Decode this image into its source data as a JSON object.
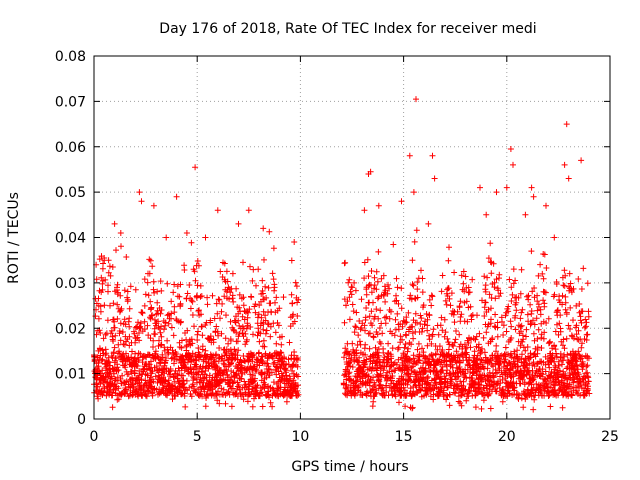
{
  "chart_data": {
    "type": "scatter",
    "title": "Day 176 of 2018, Rate Of TEC Index for receiver medi",
    "xlabel": "GPS time / hours",
    "ylabel": "ROTI / TECUs",
    "xlim": [
      0,
      25
    ],
    "ylim": [
      0,
      0.08
    ],
    "xticks": [
      0,
      5,
      10,
      15,
      20,
      25
    ],
    "xtick_labels": [
      "0",
      "5",
      "10",
      "15",
      "20",
      "25"
    ],
    "yticks": [
      0,
      0.01,
      0.02,
      0.03,
      0.04,
      0.05,
      0.06,
      0.07,
      0.08
    ],
    "ytick_labels": [
      "0",
      "0.01",
      "0.02",
      "0.03",
      "0.04",
      "0.05",
      "0.06",
      "0.07",
      "0.08"
    ],
    "grid": true,
    "marker": "+",
    "series": [
      {
        "name": "ROTI",
        "color": "#ff0000",
        "segments": [
          {
            "x_start": 0.0,
            "x_end": 9.9
          },
          {
            "x_start": 12.1,
            "x_end": 24.0
          }
        ],
        "highlights": [
          {
            "x": 0.1,
            "y": 0.034
          },
          {
            "x": 0.5,
            "y": 0.035
          },
          {
            "x": 1.0,
            "y": 0.043
          },
          {
            "x": 1.3,
            "y": 0.041
          },
          {
            "x": 2.2,
            "y": 0.05
          },
          {
            "x": 2.3,
            "y": 0.048
          },
          {
            "x": 2.9,
            "y": 0.047
          },
          {
            "x": 3.5,
            "y": 0.04
          },
          {
            "x": 4.0,
            "y": 0.049
          },
          {
            "x": 4.5,
            "y": 0.041
          },
          {
            "x": 4.9,
            "y": 0.0555
          },
          {
            "x": 5.4,
            "y": 0.04
          },
          {
            "x": 6.0,
            "y": 0.046
          },
          {
            "x": 7.0,
            "y": 0.043
          },
          {
            "x": 7.5,
            "y": 0.046
          },
          {
            "x": 8.2,
            "y": 0.042
          },
          {
            "x": 9.7,
            "y": 0.039
          },
          {
            "x": 12.6,
            "y": 0.03
          },
          {
            "x": 13.1,
            "y": 0.046
          },
          {
            "x": 13.3,
            "y": 0.054
          },
          {
            "x": 13.4,
            "y": 0.0545
          },
          {
            "x": 13.8,
            "y": 0.047
          },
          {
            "x": 14.9,
            "y": 0.048
          },
          {
            "x": 15.3,
            "y": 0.058
          },
          {
            "x": 15.5,
            "y": 0.05
          },
          {
            "x": 15.6,
            "y": 0.0705
          },
          {
            "x": 16.2,
            "y": 0.043
          },
          {
            "x": 16.4,
            "y": 0.058
          },
          {
            "x": 16.5,
            "y": 0.053
          },
          {
            "x": 18.7,
            "y": 0.051
          },
          {
            "x": 19.0,
            "y": 0.045
          },
          {
            "x": 19.5,
            "y": 0.05
          },
          {
            "x": 20.0,
            "y": 0.051
          },
          {
            "x": 20.2,
            "y": 0.0595
          },
          {
            "x": 20.3,
            "y": 0.056
          },
          {
            "x": 20.9,
            "y": 0.045
          },
          {
            "x": 21.2,
            "y": 0.051
          },
          {
            "x": 21.3,
            "y": 0.049
          },
          {
            "x": 21.9,
            "y": 0.047
          },
          {
            "x": 22.3,
            "y": 0.04
          },
          {
            "x": 22.8,
            "y": 0.056
          },
          {
            "x": 22.9,
            "y": 0.065
          },
          {
            "x": 23.0,
            "y": 0.053
          },
          {
            "x": 23.6,
            "y": 0.057
          }
        ]
      }
    ]
  }
}
